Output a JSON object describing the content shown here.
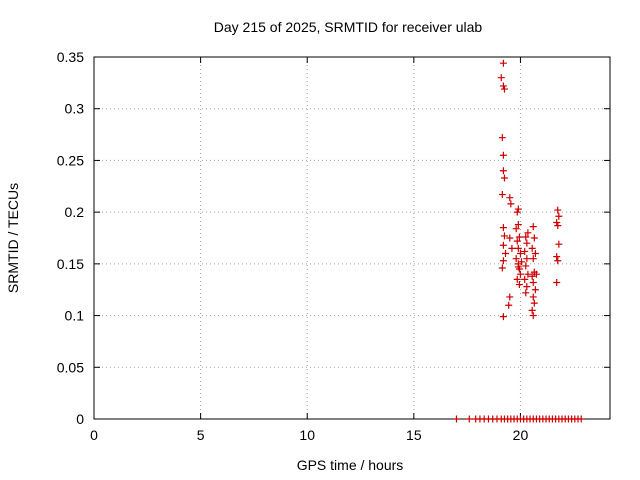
{
  "chart_data": {
    "type": "scatter",
    "title": "Day 215 of 2025, SRMTID for receiver ulab",
    "xlabel": "GPS time / hours",
    "ylabel": "SRMTID / TECUs",
    "xlim": [
      0,
      24.2
    ],
    "ylim": [
      0,
      0.35
    ],
    "xticks": [
      0,
      5,
      10,
      15,
      20
    ],
    "xtick_labels": [
      "0",
      "5",
      "10",
      "15",
      "20"
    ],
    "yticks": [
      0,
      0.05,
      0.1,
      0.15,
      0.2,
      0.25,
      0.3,
      0.35
    ],
    "ytick_labels": [
      "0",
      "0.05",
      "0.1",
      "0.15",
      "0.2",
      "0.25",
      "0.3",
      "0.35"
    ],
    "grid": true,
    "legend": "none",
    "marker": "plus",
    "color": "#cc0000",
    "series": [
      {
        "name": "SRMTID",
        "points": [
          [
            17.0,
            0
          ],
          [
            17.6,
            0
          ],
          [
            17.9,
            0
          ],
          [
            18.1,
            0
          ],
          [
            18.3,
            0
          ],
          [
            18.5,
            0
          ],
          [
            18.7,
            0
          ],
          [
            18.9,
            0
          ],
          [
            19.1,
            0
          ],
          [
            19.25,
            0
          ],
          [
            19.4,
            0
          ],
          [
            19.55,
            0
          ],
          [
            19.7,
            0
          ],
          [
            19.85,
            0
          ],
          [
            20.0,
            0
          ],
          [
            20.15,
            0
          ],
          [
            20.3,
            0
          ],
          [
            20.45,
            0
          ],
          [
            20.6,
            0
          ],
          [
            20.75,
            0
          ],
          [
            20.9,
            0
          ],
          [
            21.05,
            0
          ],
          [
            21.2,
            0
          ],
          [
            21.35,
            0
          ],
          [
            21.5,
            0
          ],
          [
            21.65,
            0
          ],
          [
            21.8,
            0
          ],
          [
            21.95,
            0
          ],
          [
            22.1,
            0
          ],
          [
            22.25,
            0
          ],
          [
            22.4,
            0
          ],
          [
            22.55,
            0
          ],
          [
            22.7,
            0
          ],
          [
            22.85,
            0
          ],
          [
            19.2,
            0.344
          ],
          [
            19.1,
            0.33
          ],
          [
            19.2,
            0.322
          ],
          [
            19.25,
            0.319
          ],
          [
            19.15,
            0.272
          ],
          [
            19.2,
            0.255
          ],
          [
            19.2,
            0.24
          ],
          [
            19.25,
            0.233
          ],
          [
            19.15,
            0.217
          ],
          [
            19.2,
            0.185
          ],
          [
            19.25,
            0.177
          ],
          [
            19.2,
            0.168
          ],
          [
            19.3,
            0.16
          ],
          [
            19.2,
            0.153
          ],
          [
            19.15,
            0.146
          ],
          [
            19.2,
            0.099
          ],
          [
            19.5,
            0.214
          ],
          [
            19.55,
            0.208
          ],
          [
            19.5,
            0.175
          ],
          [
            19.6,
            0.165
          ],
          [
            19.5,
            0.118
          ],
          [
            19.45,
            0.11
          ],
          [
            19.9,
            0.203
          ],
          [
            19.85,
            0.2
          ],
          [
            19.9,
            0.188
          ],
          [
            19.8,
            0.184
          ],
          [
            19.95,
            0.176
          ],
          [
            19.85,
            0.172
          ],
          [
            19.9,
            0.165
          ],
          [
            20.0,
            0.16
          ],
          [
            19.8,
            0.155
          ],
          [
            19.9,
            0.15
          ],
          [
            19.95,
            0.145
          ],
          [
            20.0,
            0.14
          ],
          [
            19.85,
            0.135
          ],
          [
            19.95,
            0.13
          ],
          [
            20.05,
            0.152
          ],
          [
            19.9,
            0.147
          ],
          [
            20.25,
            0.176
          ],
          [
            20.3,
            0.17
          ],
          [
            20.2,
            0.162
          ],
          [
            20.3,
            0.155
          ],
          [
            20.25,
            0.148
          ],
          [
            20.35,
            0.14
          ],
          [
            20.2,
            0.135
          ],
          [
            20.3,
            0.128
          ],
          [
            20.25,
            0.122
          ],
          [
            20.35,
            0.18
          ],
          [
            20.6,
            0.186
          ],
          [
            20.65,
            0.175
          ],
          [
            20.55,
            0.165
          ],
          [
            20.7,
            0.16
          ],
          [
            20.6,
            0.155
          ],
          [
            20.65,
            0.142
          ],
          [
            20.55,
            0.138
          ],
          [
            20.75,
            0.14
          ],
          [
            20.6,
            0.132
          ],
          [
            20.7,
            0.125
          ],
          [
            20.6,
            0.118
          ],
          [
            20.65,
            0.112
          ],
          [
            20.55,
            0.105
          ],
          [
            20.6,
            0.1
          ],
          [
            21.75,
            0.202
          ],
          [
            21.8,
            0.196
          ],
          [
            21.7,
            0.19
          ],
          [
            21.75,
            0.187
          ],
          [
            21.8,
            0.169
          ],
          [
            21.7,
            0.157
          ],
          [
            21.75,
            0.153
          ],
          [
            21.7,
            0.132
          ]
        ]
      }
    ]
  }
}
